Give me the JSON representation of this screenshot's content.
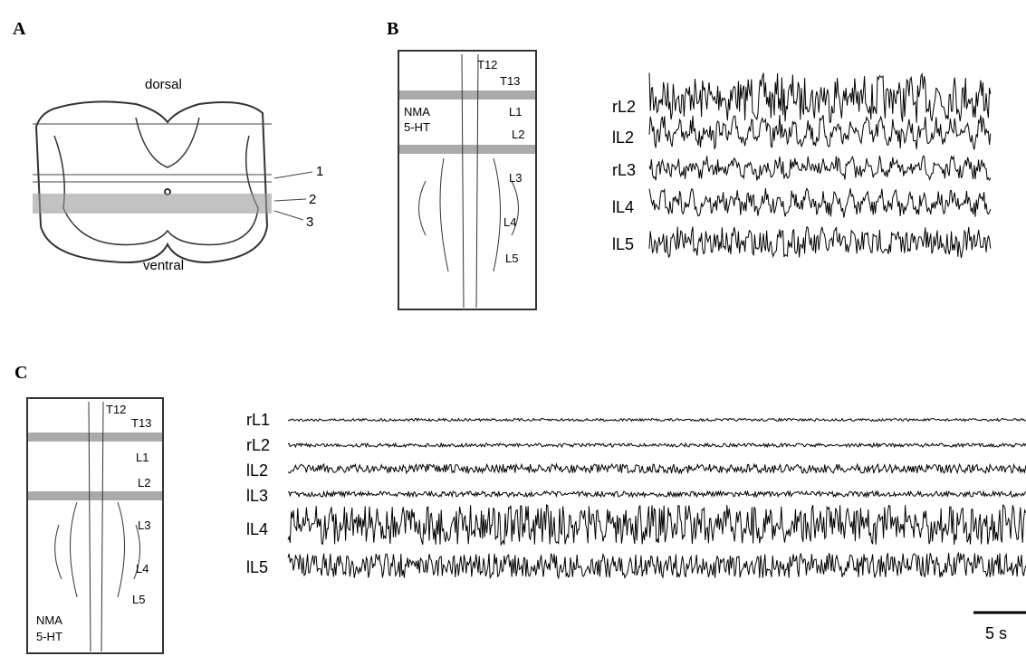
{
  "panels": [
    {
      "label": "A",
      "labels": [
        "dorsal",
        "ventral",
        "1",
        "2",
        "3"
      ]
    },
    {
      "label": "B",
      "diagram_labels": [
        "T12",
        "T13",
        "NMA",
        "5-HT",
        "L1",
        "L2",
        "L3",
        "L4",
        "L5"
      ],
      "traces": [
        "rL2",
        "lL2",
        "rL3",
        "lL4",
        "lL5"
      ]
    },
    {
      "label": "C",
      "diagram_labels": [
        "T12",
        "T13",
        "L1",
        "L2",
        "L3",
        "L4",
        "L5",
        "NMA",
        "5-HT"
      ],
      "traces": [
        "rL1",
        "rL2",
        "lL2",
        "lL3",
        "lL4",
        "lL5"
      ],
      "scale_bar": "5 s"
    }
  ]
}
